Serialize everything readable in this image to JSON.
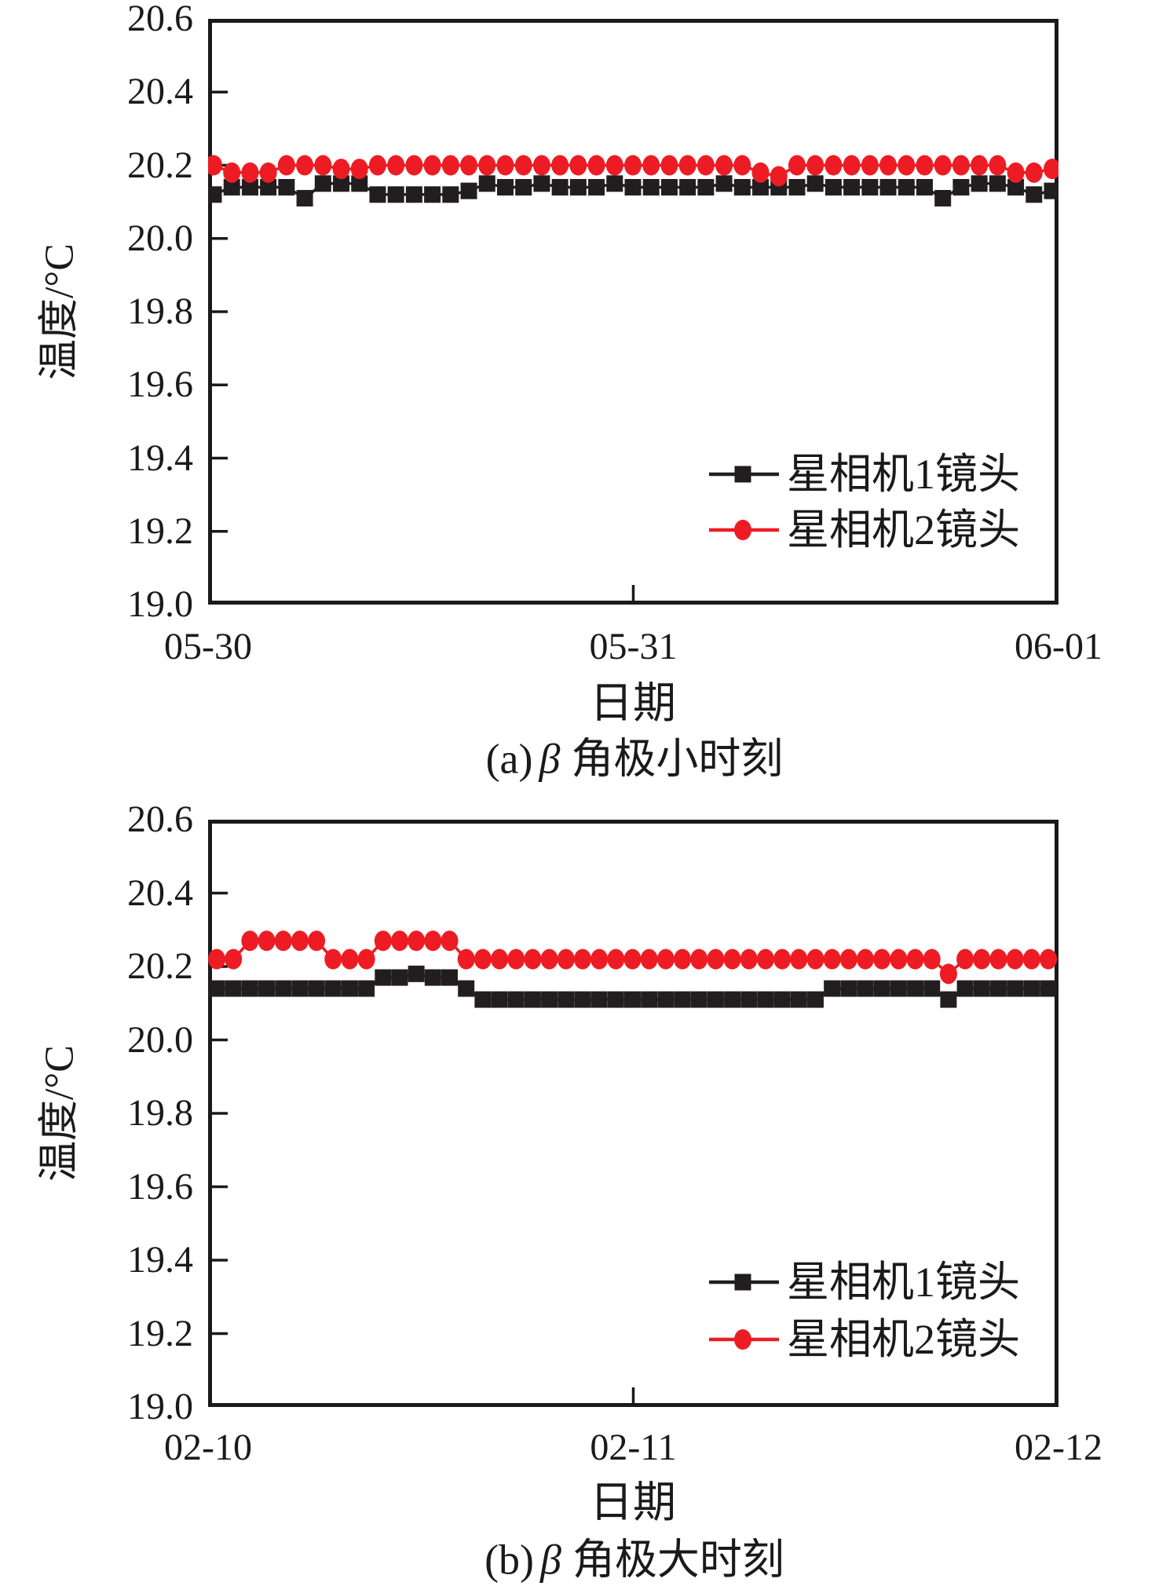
{
  "page": {
    "background": "#ffffff",
    "ink": "#1a1a1a"
  },
  "chart_data": [
    {
      "id": "a",
      "type": "line",
      "caption_prefix": "(a)",
      "caption_symbol": "β",
      "caption_suffix": "角极小时刻",
      "xlabel": "日期",
      "ylabel": "温度/°C",
      "ylim": [
        19.0,
        20.6
      ],
      "ytick_step": 0.2,
      "ytick_labels": [
        "20.6",
        "20.4",
        "20.2",
        "20.0",
        "19.8",
        "19.6",
        "19.4",
        "19.2",
        "19.0"
      ],
      "xtick_labels": [
        "05-30",
        "05-31",
        "06-01"
      ],
      "grid": false,
      "legend_position": "inside-lower-right",
      "series": [
        {
          "name": "星相机1镜头",
          "color": "#221e1f",
          "marker": "square",
          "values": [
            20.12,
            20.14,
            20.14,
            20.14,
            20.14,
            20.11,
            20.15,
            20.15,
            20.15,
            20.12,
            20.12,
            20.12,
            20.12,
            20.12,
            20.13,
            20.15,
            20.14,
            20.14,
            20.15,
            20.14,
            20.14,
            20.14,
            20.15,
            20.14,
            20.14,
            20.14,
            20.14,
            20.14,
            20.15,
            20.14,
            20.14,
            20.14,
            20.14,
            20.15,
            20.14,
            20.14,
            20.14,
            20.14,
            20.14,
            20.14,
            20.11,
            20.14,
            20.15,
            20.15,
            20.14,
            20.12,
            20.13
          ]
        },
        {
          "name": "星相机2镜头",
          "color": "#ed1c24",
          "marker": "circle",
          "values": [
            20.2,
            20.18,
            20.18,
            20.18,
            20.2,
            20.2,
            20.2,
            20.19,
            20.19,
            20.2,
            20.2,
            20.2,
            20.2,
            20.2,
            20.2,
            20.2,
            20.2,
            20.2,
            20.2,
            20.2,
            20.2,
            20.2,
            20.2,
            20.2,
            20.2,
            20.2,
            20.2,
            20.2,
            20.2,
            20.2,
            20.18,
            20.17,
            20.2,
            20.2,
            20.2,
            20.2,
            20.2,
            20.2,
            20.2,
            20.2,
            20.2,
            20.2,
            20.2,
            20.2,
            20.18,
            20.18,
            20.19
          ]
        }
      ]
    },
    {
      "id": "b",
      "type": "line",
      "caption_prefix": "(b)",
      "caption_symbol": "β",
      "caption_suffix": "角极大时刻",
      "xlabel": "日期",
      "ylabel": "温度/°C",
      "ylim": [
        19.0,
        20.6
      ],
      "ytick_step": 0.2,
      "ytick_labels": [
        "20.6",
        "20.4",
        "20.2",
        "20.0",
        "19.8",
        "19.6",
        "19.4",
        "19.2",
        "19.0"
      ],
      "xtick_labels": [
        "02-10",
        "02-11",
        "02-12"
      ],
      "grid": false,
      "legend_position": "inside-lower-right",
      "series": [
        {
          "name": "星相机1镜头",
          "color": "#221e1f",
          "marker": "square",
          "values": [
            20.14,
            20.14,
            20.14,
            20.14,
            20.14,
            20.14,
            20.14,
            20.14,
            20.14,
            20.14,
            20.17,
            20.17,
            20.18,
            20.17,
            20.17,
            20.14,
            20.11,
            20.11,
            20.11,
            20.11,
            20.11,
            20.11,
            20.11,
            20.11,
            20.11,
            20.11,
            20.11,
            20.11,
            20.11,
            20.11,
            20.11,
            20.11,
            20.11,
            20.11,
            20.11,
            20.11,
            20.11,
            20.14,
            20.14,
            20.14,
            20.14,
            20.14,
            20.14,
            20.14,
            20.11,
            20.14,
            20.14,
            20.14,
            20.14,
            20.14,
            20.14
          ]
        },
        {
          "name": "星相机2镜头",
          "color": "#ed1c24",
          "marker": "circle",
          "values": [
            20.22,
            20.22,
            20.27,
            20.27,
            20.27,
            20.27,
            20.27,
            20.22,
            20.22,
            20.22,
            20.27,
            20.27,
            20.27,
            20.27,
            20.27,
            20.22,
            20.22,
            20.22,
            20.22,
            20.22,
            20.22,
            20.22,
            20.22,
            20.22,
            20.22,
            20.22,
            20.22,
            20.22,
            20.22,
            20.22,
            20.22,
            20.22,
            20.22,
            20.22,
            20.22,
            20.22,
            20.22,
            20.22,
            20.22,
            20.22,
            20.22,
            20.22,
            20.22,
            20.22,
            20.18,
            20.22,
            20.22,
            20.22,
            20.22,
            20.22,
            20.22
          ]
        }
      ]
    }
  ]
}
